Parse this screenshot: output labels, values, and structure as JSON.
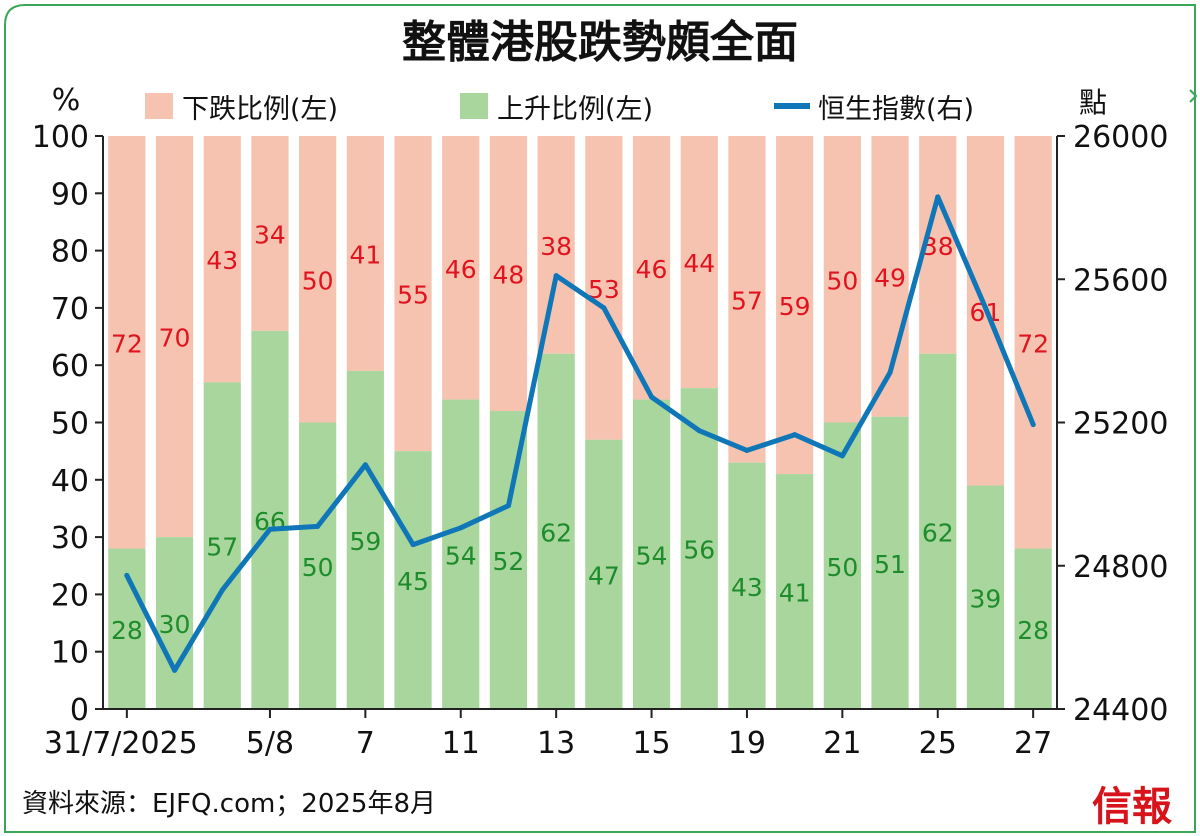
{
  "title": "整體港股跌勢頗全面",
  "source": "資料來源：EJFQ.com；2025年8月",
  "logo": "信報",
  "colors": {
    "frame": "#3aa657",
    "down": "#f6c3b1",
    "up": "#a8d69c",
    "line": "#0f76b8",
    "down_label": "#e0141e",
    "up_label": "#1e8c2c",
    "logo": "#d7141b"
  },
  "chart_data": {
    "type": "bar",
    "stacked": true,
    "left_axis": {
      "label": "%",
      "ylim": [
        0,
        100
      ],
      "ticks": [
        "0",
        "10",
        "20",
        "30",
        "40",
        "50",
        "60",
        "70",
        "80",
        "90",
        "100"
      ]
    },
    "right_axis": {
      "label": "點",
      "ylim": [
        24400,
        26000
      ],
      "ticks": [
        "24400",
        "24800",
        "25200",
        "25600",
        "26000"
      ]
    },
    "x_tick_labels": [
      "31/7/2025",
      "5/8",
      "7",
      "11",
      "13",
      "15",
      "19",
      "21",
      "25",
      "27"
    ],
    "x_tick_positions": [
      0,
      3,
      5,
      7,
      9,
      11,
      13,
      15,
      17,
      19
    ],
    "legend": [
      "下跌比例(左)",
      "上升比例(左)",
      "恒生指數(右)"
    ],
    "series": [
      {
        "name": "下跌比例(左)",
        "axis": "left",
        "values": [
          72,
          70,
          43,
          34,
          50,
          41,
          55,
          46,
          48,
          38,
          53,
          46,
          44,
          57,
          59,
          50,
          49,
          38,
          61,
          72
        ]
      },
      {
        "name": "上升比例(左)",
        "axis": "left",
        "values": [
          28,
          30,
          57,
          66,
          50,
          59,
          45,
          54,
          52,
          62,
          47,
          54,
          56,
          43,
          41,
          50,
          51,
          62,
          39,
          28
        ]
      },
      {
        "name": "恒生指數(右)",
        "axis": "right",
        "type": "line",
        "values": [
          24773,
          24508,
          24732,
          24902,
          24910,
          25082,
          24859,
          24906,
          24968,
          25610,
          25520,
          25271,
          25177,
          25122,
          25166,
          25107,
          25340,
          25830,
          25520,
          25194
        ]
      }
    ]
  }
}
